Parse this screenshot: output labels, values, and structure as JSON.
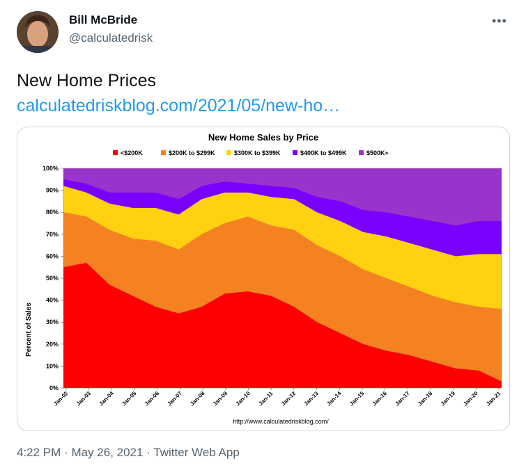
{
  "tweet": {
    "display_name": "Bill McBride",
    "handle": "@calculatedrisk",
    "more_label": "•••",
    "text": "New Home Prices",
    "link_text": "calculatedriskblog.com/2021/05/new-ho…",
    "time": "4:22 PM",
    "date": "May 26, 2021",
    "source": "Twitter Web App",
    "separator": "·"
  },
  "chart_data": {
    "type": "area",
    "title": "New Home Sales by Price",
    "ylabel": "Percent of Sales",
    "source_note": "http://www.calculatedriskblog.com/",
    "ylim": [
      0,
      100
    ],
    "yticks": [
      "0%",
      "10%",
      "20%",
      "30%",
      "40%",
      "50%",
      "60%",
      "70%",
      "80%",
      "90%",
      "100%"
    ],
    "x_tick_labels": [
      "Jan-02",
      "Jan-03",
      "Jan-04",
      "Jan-05",
      "Jan-06",
      "Jan-07",
      "Jan-08",
      "Jan-09",
      "Jan-10",
      "Jan-11",
      "Jan-12",
      "Jan-13",
      "Jan-14",
      "Jan-15",
      "Jan-16",
      "Jan-17",
      "Jan-18",
      "Jan-19",
      "Jan-20",
      "Jan-21"
    ],
    "x": [
      "2002",
      "2003",
      "2004",
      "2005",
      "2006",
      "2007",
      "2008",
      "2009",
      "2010",
      "2011",
      "2012",
      "2013",
      "2014",
      "2015",
      "2016",
      "2017",
      "2018",
      "2019",
      "2020",
      "2021"
    ],
    "stacked": true,
    "grid": false,
    "legend_position": "top",
    "series": [
      {
        "name": "<$200K",
        "color": "#ff0000",
        "values": [
          55,
          57,
          47,
          42,
          37,
          34,
          37,
          43,
          44,
          42,
          37,
          30,
          25,
          20,
          17,
          15,
          12,
          9,
          8,
          3
        ]
      },
      {
        "name": "$200K to $299K",
        "color": "#f58220",
        "values": [
          25,
          21,
          25,
          26,
          30,
          29,
          33,
          32,
          34,
          32,
          35,
          35,
          35,
          34,
          33,
          31,
          30,
          30,
          29,
          33
        ]
      },
      {
        "name": "$300K to $399K",
        "color": "#ffd111",
        "values": [
          12,
          11,
          12,
          14,
          15,
          16,
          16,
          14,
          11,
          13,
          14,
          15,
          16,
          17,
          19,
          20,
          21,
          21,
          24,
          25
        ]
      },
      {
        "name": "$400K to $499K",
        "color": "#7a00ff",
        "values": [
          3,
          4,
          5,
          7,
          7,
          7,
          6,
          5,
          4,
          5,
          5,
          7,
          9,
          10,
          11,
          12,
          13,
          14,
          15,
          15
        ]
      },
      {
        "name": "$500K+",
        "color": "#9933cc",
        "values": [
          5,
          7,
          11,
          11,
          11,
          14,
          8,
          6,
          7,
          8,
          9,
          13,
          15,
          19,
          20,
          22,
          24,
          26,
          24,
          24
        ]
      }
    ]
  }
}
